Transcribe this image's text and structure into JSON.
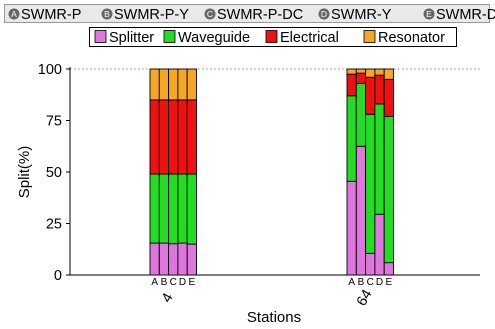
{
  "chart_data": {
    "type": "bar",
    "stacked": true,
    "normalized_percent": true,
    "variants_legend": [
      {
        "key": "A",
        "label": "SWMR-P"
      },
      {
        "key": "B",
        "label": "SWMR-P-Y"
      },
      {
        "key": "C",
        "label": "SWMR-P-DC"
      },
      {
        "key": "D",
        "label": "SWMR-Y"
      },
      {
        "key": "E",
        "label": "SWMR-DC"
      }
    ],
    "series": [
      {
        "name": "Splitter",
        "color": "#dd77dd"
      },
      {
        "name": "Waveguide",
        "color": "#22dd22"
      },
      {
        "name": "Electrical",
        "color": "#ee1111"
      },
      {
        "name": "Resonator",
        "color": "#f5a623"
      }
    ],
    "groups": [
      {
        "label": "4",
        "bars": [
          {
            "key": "A",
            "values": [
              15.5,
              33.5,
              36,
              15
            ]
          },
          {
            "key": "B",
            "values": [
              15.5,
              33.5,
              36,
              15
            ]
          },
          {
            "key": "C",
            "values": [
              15.2,
              33.8,
              36,
              15
            ]
          },
          {
            "key": "D",
            "values": [
              15.5,
              33.5,
              36,
              15
            ]
          },
          {
            "key": "E",
            "values": [
              15,
              34,
              36,
              15
            ]
          }
        ]
      },
      {
        "label": "64",
        "bars": [
          {
            "key": "A",
            "values": [
              45.5,
              41.5,
              10.5,
              2.5
            ]
          },
          {
            "key": "B",
            "values": [
              62.5,
              30.5,
              5,
              2
            ]
          },
          {
            "key": "C",
            "values": [
              10.5,
              67.5,
              18,
              4
            ]
          },
          {
            "key": "D",
            "values": [
              29.5,
              53.5,
              14,
              3
            ]
          },
          {
            "key": "E",
            "values": [
              6,
              71,
              18,
              5
            ]
          }
        ]
      }
    ],
    "xlabel": "Stations",
    "ylabel": "Split(%)",
    "ylim": [
      0,
      100
    ],
    "yticks": [
      0,
      25,
      50,
      75,
      100
    ],
    "reference_line": 100,
    "legend_position": "top"
  }
}
